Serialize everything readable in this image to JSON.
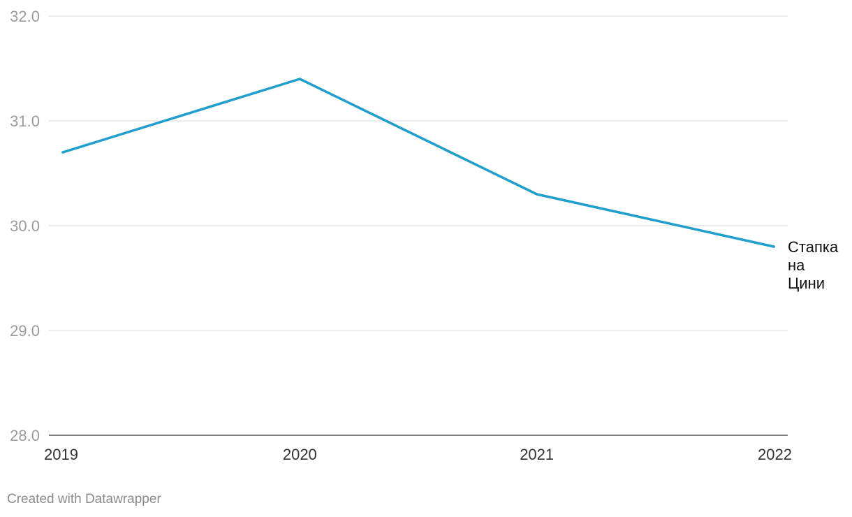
{
  "chart_data": {
    "type": "line",
    "x": [
      "2019",
      "2020",
      "2021",
      "2022"
    ],
    "series": [
      {
        "name": "Стапка на Цини",
        "label_lines": [
          "Стапка",
          "на",
          "Цини"
        ],
        "values": [
          30.7,
          31.4,
          30.3,
          29.8
        ],
        "color": "#1f9fcc"
      }
    ],
    "yticks": [
      "28.0",
      "29.0",
      "30.0",
      "31.0",
      "32.0"
    ],
    "ylim": [
      28,
      32
    ],
    "grid": true,
    "xlabel": "",
    "ylabel": ""
  },
  "footer": {
    "credit": "Created with Datawrapper"
  }
}
